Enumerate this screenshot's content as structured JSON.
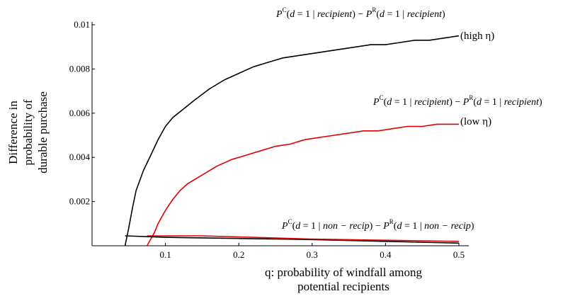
{
  "chart_data": {
    "type": "line",
    "title": "",
    "xlabel_lines": [
      "q: probability of windfall among",
      "potential recipients"
    ],
    "ylabel_lines": [
      "Difference in",
      "probability of",
      "durable purchase"
    ],
    "xlim": [
      0,
      0.5
    ],
    "ylim": [
      0,
      0.01
    ],
    "x_ticks": [
      0.1,
      0.2,
      0.3,
      0.4,
      0.5
    ],
    "x_tick_labels": [
      "0.1",
      "0.2",
      "0.3",
      "0.4",
      "0.5"
    ],
    "y_ticks": [
      0.002,
      0.004,
      0.006,
      0.008,
      0.01
    ],
    "y_tick_labels": [
      "0.002",
      "0.004",
      "0.006",
      "0.008",
      "0.01"
    ],
    "grid": false,
    "annotations": [
      {
        "target": "high",
        "parts": [
          "P",
          "C",
          "(",
          "d",
          " = 1 | ",
          "recipient",
          ") − ",
          "P",
          "R",
          "(",
          "d",
          " = 1 | ",
          "recipient",
          ")"
        ],
        "suffix": "(high η)"
      },
      {
        "target": "low",
        "parts": [
          "P",
          "C",
          "(",
          "d",
          " = 1 | ",
          "recipient",
          ") − ",
          "P",
          "R",
          "(",
          "d",
          " = 1 | ",
          "recipient",
          ")"
        ],
        "suffix": "(low η)"
      },
      {
        "target": "nonrecip",
        "parts": [
          "P",
          "C",
          "(",
          "d",
          " = 1 | ",
          "non − recip",
          ") − ",
          "P",
          "R",
          "(",
          "d",
          " = 1 | ",
          "non − recip",
          ")"
        ],
        "suffix": ""
      }
    ],
    "series": [
      {
        "key": "high",
        "color": "#000000",
        "x": [
          0.045,
          0.05,
          0.055,
          0.06,
          0.07,
          0.08,
          0.09,
          0.1,
          0.11,
          0.125,
          0.14,
          0.16,
          0.18,
          0.2,
          0.22,
          0.24,
          0.26,
          0.28,
          0.3,
          0.32,
          0.34,
          0.36,
          0.38,
          0.4,
          0.42,
          0.44,
          0.46,
          0.48,
          0.5
        ],
        "y": [
          0,
          0.0008,
          0.0017,
          0.0025,
          0.0034,
          0.0041,
          0.0048,
          0.0054,
          0.0058,
          0.0062,
          0.0066,
          0.0071,
          0.0075,
          0.0078,
          0.0081,
          0.0083,
          0.0085,
          0.0086,
          0.0087,
          0.0088,
          0.0089,
          0.009,
          0.0091,
          0.0091,
          0.0092,
          0.0093,
          0.0093,
          0.0094,
          0.0095
        ]
      },
      {
        "key": "low",
        "color": "#e00000",
        "x": [
          0.075,
          0.08,
          0.085,
          0.09,
          0.1,
          0.11,
          0.12,
          0.13,
          0.15,
          0.17,
          0.19,
          0.21,
          0.23,
          0.25,
          0.27,
          0.29,
          0.31,
          0.33,
          0.35,
          0.37,
          0.39,
          0.41,
          0.43,
          0.45,
          0.47,
          0.5
        ],
        "y": [
          0,
          0.0003,
          0.0006,
          0.001,
          0.0016,
          0.0021,
          0.0025,
          0.0028,
          0.0032,
          0.0036,
          0.0039,
          0.0041,
          0.0043,
          0.0045,
          0.0046,
          0.0048,
          0.0049,
          0.005,
          0.0051,
          0.0052,
          0.0052,
          0.0053,
          0.0054,
          0.0054,
          0.0055,
          0.0055
        ]
      },
      {
        "key": "nonrecip",
        "color": "#000000",
        "x": [
          0.045,
          0.1,
          0.2,
          0.3,
          0.4,
          0.5
        ],
        "y": [
          0.00045,
          0.00038,
          0.00033,
          0.00028,
          0.0002,
          0.00012
        ]
      },
      {
        "key": "nonrecip",
        "color": "#e00000",
        "x": [
          0.075,
          0.15,
          0.2,
          0.3,
          0.4,
          0.5
        ],
        "y": [
          0.00045,
          0.00045,
          0.0004,
          0.0003,
          0.00025,
          0.0002
        ]
      }
    ]
  }
}
